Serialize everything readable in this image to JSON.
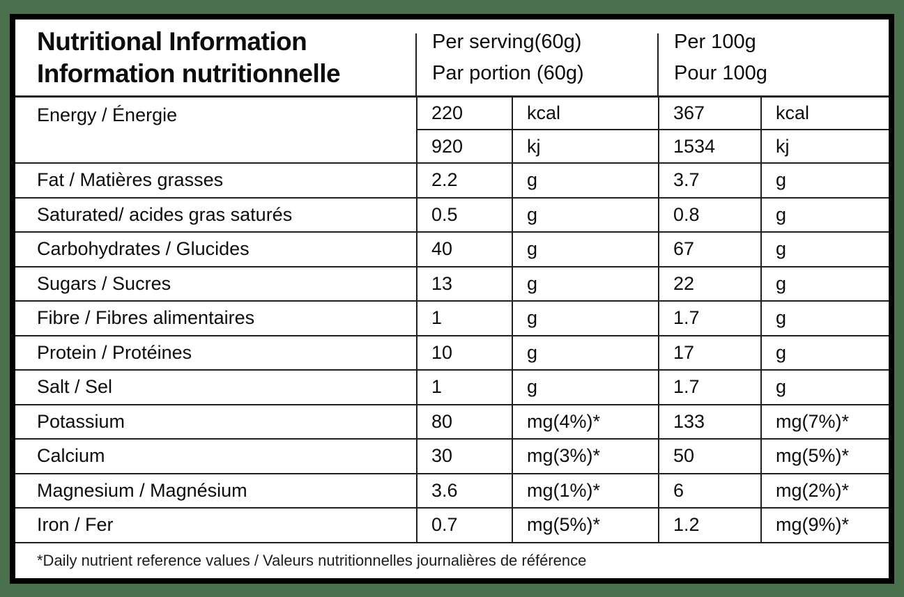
{
  "colors": {
    "background": "#4b704e",
    "card": "#ffffff",
    "border": "#000000",
    "grid_lines": "#1f1f1f",
    "text": "#0d0d0d"
  },
  "table": {
    "title": {
      "line1": "Nutritional Information",
      "line2": "Information nutritionnelle"
    },
    "columns": {
      "serving": {
        "line1": "Per serving(60g)",
        "line2": "Par portion (60g)"
      },
      "per100g": {
        "line1": "Per 100g",
        "line2": "Pour 100g"
      }
    },
    "rows": [
      {
        "label": "Energy / Énergie",
        "values": [
          [
            "220",
            "kcal",
            "367",
            "kcal"
          ],
          [
            "920",
            "kj",
            "1534",
            "kj"
          ]
        ]
      },
      {
        "label": "Fat / Matières grasses",
        "values": [
          [
            "2.2",
            "g",
            "3.7",
            "g"
          ]
        ]
      },
      {
        "label": "Saturated/ acides gras saturés",
        "values": [
          [
            "0.5",
            "g",
            "0.8",
            "g"
          ]
        ]
      },
      {
        "label": "Carbohydrates / Glucides",
        "values": [
          [
            "40",
            "g",
            "67",
            "g"
          ]
        ]
      },
      {
        "label": "Sugars / Sucres",
        "values": [
          [
            "13",
            "g",
            "22",
            "g"
          ]
        ]
      },
      {
        "label": "Fibre / Fibres alimentaires",
        "values": [
          [
            "1",
            "g",
            "1.7",
            "g"
          ]
        ]
      },
      {
        "label": "Protein / Protéines",
        "values": [
          [
            "10",
            "g",
            "17",
            "g"
          ]
        ]
      },
      {
        "label": "Salt / Sel",
        "values": [
          [
            "1",
            "g",
            "1.7",
            "g"
          ]
        ]
      },
      {
        "label": "Potassium",
        "values": [
          [
            "80",
            "mg(4%)*",
            "133",
            "mg(7%)*"
          ]
        ]
      },
      {
        "label": "Calcium",
        "values": [
          [
            "30",
            "mg(3%)*",
            "50",
            "mg(5%)*"
          ]
        ]
      },
      {
        "label": "Magnesium / Magnésium",
        "values": [
          [
            "3.6",
            "mg(1%)*",
            "6",
            "mg(2%)*"
          ]
        ]
      },
      {
        "label": "Iron / Fer",
        "values": [
          [
            "0.7",
            "mg(5%)*",
            "1.2",
            "mg(9%)*"
          ]
        ]
      }
    ],
    "footnote": "*Daily nutrient reference values / Valeurs nutritionnelles journalières de référence"
  }
}
